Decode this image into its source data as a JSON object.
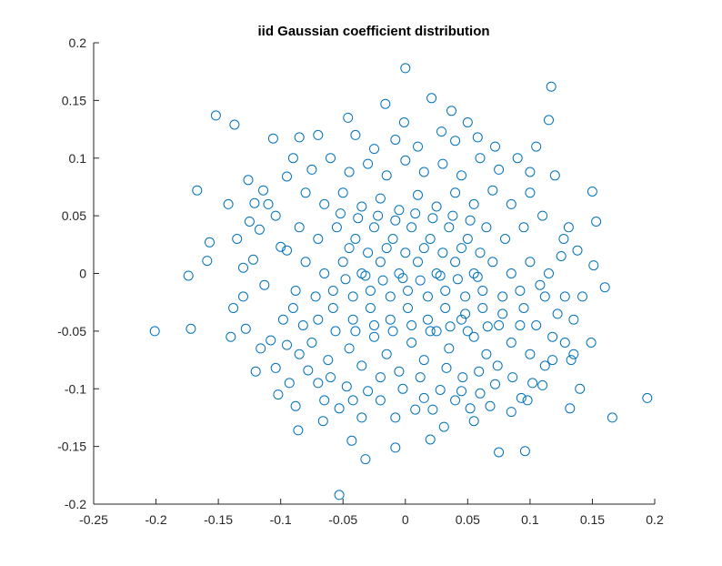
{
  "chart_data": {
    "type": "scatter",
    "title": "iid Gaussian coefficient distribution",
    "xlabel": "",
    "ylabel": "",
    "xlim": [
      -0.25,
      0.2
    ],
    "ylim": [
      -0.2,
      0.2
    ],
    "x_ticks": [
      -0.25,
      -0.2,
      -0.15,
      -0.1,
      -0.05,
      0,
      0.05,
      0.1,
      0.15,
      0.2
    ],
    "x_tick_labels": [
      "-0.25",
      "-0.2",
      "-0.15",
      "-0.1",
      "-0.05",
      "0",
      "0.05",
      "0.1",
      "0.15",
      "0.2"
    ],
    "y_ticks": [
      -0.2,
      -0.15,
      -0.1,
      -0.05,
      0,
      0.05,
      0.1,
      0.15,
      0.2
    ],
    "y_tick_labels": [
      "-0.2",
      "-0.15",
      "-0.1",
      "-0.05",
      "0",
      "0.05",
      "0.1",
      "0.15",
      "0.2"
    ],
    "grid": false,
    "box": "left-bottom",
    "marker": "circle-open",
    "marker_color": "#0072BD",
    "series": [
      {
        "points": [
          [
            0.0,
            0.178
          ],
          [
            0.117,
            0.162
          ],
          [
            -0.152,
            0.137
          ],
          [
            -0.137,
            0.129
          ],
          [
            0.021,
            0.152
          ],
          [
            -0.106,
            0.117
          ],
          [
            -0.167,
            0.072
          ],
          [
            -0.157,
            0.027
          ],
          [
            -0.174,
            -0.002
          ],
          [
            -0.201,
            -0.05
          ],
          [
            -0.172,
            -0.048
          ],
          [
            -0.159,
            0.011
          ],
          [
            0.194,
            -0.108
          ],
          [
            0.166,
            -0.125
          ],
          [
            0.15,
            0.071
          ],
          [
            0.151,
            0.007
          ],
          [
            0.16,
            -0.012
          ],
          [
            0.149,
            -0.06
          ],
          [
            0.14,
            -0.1
          ],
          [
            0.132,
            -0.117
          ],
          [
            -0.053,
            -0.192
          ],
          [
            -0.032,
            -0.161
          ],
          [
            -0.086,
            -0.136
          ],
          [
            0.075,
            -0.155
          ],
          [
            0.096,
            -0.154
          ],
          [
            -0.008,
            -0.151
          ],
          [
            0.02,
            -0.144
          ],
          [
            0.031,
            -0.133
          ],
          [
            -0.043,
            -0.145
          ],
          [
            0.131,
            0.04
          ],
          [
            0.153,
            0.045
          ],
          [
            0.127,
            0.03
          ],
          [
            0.128,
            -0.02
          ],
          [
            0.135,
            -0.04
          ],
          [
            0.133,
            -0.075
          ],
          [
            0.112,
            -0.08
          ],
          [
            0.102,
            -0.095
          ],
          [
            0.093,
            -0.108
          ],
          [
            0.115,
            0.133
          ],
          [
            0.05,
            0.131
          ],
          [
            -0.046,
            0.135
          ],
          [
            -0.001,
            0.131
          ],
          [
            -0.016,
            0.147
          ],
          [
            0.037,
            0.141
          ],
          [
            0.029,
            0.123
          ],
          [
            -0.126,
            0.081
          ],
          [
            -0.114,
            0.072
          ],
          [
            -0.121,
            0.061
          ],
          [
            -0.104,
            0.05
          ],
          [
            -0.117,
            0.038
          ],
          [
            -0.1,
            0.023
          ],
          [
            -0.122,
            0.012
          ],
          [
            -0.113,
            -0.01
          ],
          [
            -0.13,
            -0.02
          ],
          [
            -0.128,
            -0.048
          ],
          [
            -0.116,
            -0.065
          ],
          [
            -0.104,
            -0.082
          ],
          [
            -0.093,
            -0.095
          ],
          [
            -0.102,
            -0.105
          ],
          [
            -0.088,
            -0.115
          ],
          [
            -0.065,
            -0.11
          ],
          [
            -0.07,
            -0.095
          ],
          [
            -0.066,
            -0.128
          ],
          [
            -0.053,
            -0.117
          ],
          [
            -0.047,
            -0.098
          ],
          [
            -0.03,
            -0.102
          ],
          [
            -0.02,
            -0.11
          ],
          [
            -0.008,
            -0.125
          ],
          [
            0.008,
            -0.118
          ],
          [
            0.015,
            -0.108
          ],
          [
            0.028,
            -0.101
          ],
          [
            0.04,
            -0.11
          ],
          [
            0.052,
            -0.117
          ],
          [
            0.06,
            -0.104
          ],
          [
            0.072,
            -0.096
          ],
          [
            0.086,
            -0.09
          ],
          [
            0.074,
            -0.08
          ],
          [
            0.059,
            -0.085
          ],
          [
            0.046,
            -0.09
          ],
          [
            0.033,
            -0.082
          ],
          [
            -0.09,
            -0.03
          ],
          [
            -0.082,
            -0.045
          ],
          [
            -0.075,
            -0.06
          ],
          [
            -0.062,
            -0.075
          ],
          [
            -0.056,
            -0.05
          ],
          [
            -0.045,
            -0.065
          ],
          [
            -0.035,
            -0.08
          ],
          [
            -0.025,
            -0.055
          ],
          [
            -0.015,
            -0.07
          ],
          [
            -0.005,
            -0.085
          ],
          [
            0.005,
            -0.06
          ],
          [
            0.015,
            -0.075
          ],
          [
            0.025,
            -0.05
          ],
          [
            0.035,
            -0.065
          ],
          [
            0.045,
            -0.04
          ],
          [
            0.055,
            -0.055
          ],
          [
            0.065,
            -0.07
          ],
          [
            0.075,
            -0.045
          ],
          [
            0.085,
            -0.06
          ],
          [
            0.095,
            -0.03
          ],
          [
            0.105,
            -0.045
          ],
          [
            0.112,
            -0.02
          ],
          [
            0.118,
            -0.055
          ],
          [
            0.09,
            0.1
          ],
          [
            0.075,
            0.09
          ],
          [
            0.06,
            0.1
          ],
          [
            0.045,
            0.085
          ],
          [
            0.03,
            0.095
          ],
          [
            0.015,
            0.088
          ],
          [
            0.0,
            0.098
          ],
          [
            -0.015,
            0.085
          ],
          [
            -0.03,
            0.095
          ],
          [
            -0.045,
            0.088
          ],
          [
            -0.06,
            0.1
          ],
          [
            -0.075,
            0.09
          ],
          [
            -0.09,
            0.1
          ],
          [
            -0.08,
            0.07
          ],
          [
            -0.065,
            0.06
          ],
          [
            -0.05,
            0.07
          ],
          [
            -0.035,
            0.058
          ],
          [
            -0.02,
            0.065
          ],
          [
            -0.005,
            0.055
          ],
          [
            0.01,
            0.068
          ],
          [
            0.025,
            0.058
          ],
          [
            0.04,
            0.07
          ],
          [
            0.055,
            0.06
          ],
          [
            0.07,
            0.072
          ],
          [
            0.085,
            0.06
          ],
          [
            0.1,
            0.07
          ],
          [
            0.11,
            0.05
          ],
          [
            0.095,
            0.04
          ],
          [
            0.08,
            0.03
          ],
          [
            0.065,
            0.04
          ],
          [
            0.05,
            0.03
          ],
          [
            0.035,
            0.04
          ],
          [
            0.02,
            0.03
          ],
          [
            0.005,
            0.04
          ],
          [
            -0.01,
            0.03
          ],
          [
            -0.025,
            0.04
          ],
          [
            -0.04,
            0.03
          ],
          [
            -0.055,
            0.04
          ],
          [
            -0.07,
            0.03
          ],
          [
            -0.085,
            0.04
          ],
          [
            -0.095,
            0.02
          ],
          [
            -0.08,
            0.01
          ],
          [
            -0.065,
            0.0
          ],
          [
            -0.05,
            0.01
          ],
          [
            -0.035,
            0.0
          ],
          [
            -0.02,
            0.01
          ],
          [
            -0.005,
            0.0
          ],
          [
            0.01,
            0.01
          ],
          [
            0.025,
            0.0
          ],
          [
            0.04,
            0.01
          ],
          [
            0.055,
            0.0
          ],
          [
            0.07,
            0.01
          ],
          [
            0.085,
            0.0
          ],
          [
            0.1,
            0.01
          ],
          [
            0.115,
            0.0
          ],
          [
            0.125,
            0.015
          ],
          [
            0.108,
            -0.01
          ],
          [
            0.092,
            -0.015
          ],
          [
            0.078,
            -0.02
          ],
          [
            0.062,
            -0.015
          ],
          [
            0.048,
            -0.02
          ],
          [
            0.032,
            -0.015
          ],
          [
            0.018,
            -0.02
          ],
          [
            0.002,
            -0.015
          ],
          [
            -0.012,
            -0.02
          ],
          [
            -0.028,
            -0.015
          ],
          [
            -0.042,
            -0.02
          ],
          [
            -0.058,
            -0.015
          ],
          [
            -0.072,
            -0.02
          ],
          [
            -0.088,
            -0.015
          ],
          [
            -0.098,
            -0.04
          ],
          [
            -0.085,
            -0.07
          ],
          [
            -0.07,
            -0.04
          ],
          [
            -0.058,
            -0.03
          ],
          [
            -0.042,
            -0.04
          ],
          [
            -0.028,
            -0.03
          ],
          [
            -0.012,
            -0.04
          ],
          [
            0.002,
            -0.03
          ],
          [
            0.018,
            -0.04
          ],
          [
            0.032,
            -0.03
          ],
          [
            0.048,
            -0.035
          ],
          [
            0.062,
            -0.03
          ],
          [
            0.078,
            -0.035
          ],
          [
            0.092,
            -0.045
          ],
          [
            0.1,
            -0.07
          ],
          [
            0.122,
            -0.035
          ],
          [
            0.138,
            0.02
          ],
          [
            0.142,
            -0.02
          ],
          [
            0.12,
            0.085
          ],
          [
            0.105,
            0.11
          ],
          [
            0.1,
            0.088
          ],
          [
            0.072,
            0.11
          ],
          [
            -0.008,
            0.116
          ],
          [
            -0.04,
            0.12
          ],
          [
            -0.025,
            0.108
          ],
          [
            0.01,
            0.11
          ],
          [
            0.04,
            0.115
          ],
          [
            0.058,
            0.118
          ],
          [
            -0.07,
            0.12
          ],
          [
            -0.085,
            0.118
          ],
          [
            -0.095,
            0.084
          ],
          [
            -0.11,
            0.06
          ],
          [
            -0.125,
            0.045
          ],
          [
            -0.135,
            0.03
          ],
          [
            -0.142,
            0.06
          ],
          [
            -0.13,
            0.005
          ],
          [
            -0.138,
            -0.03
          ],
          [
            -0.14,
            -0.055
          ],
          [
            -0.12,
            -0.085
          ],
          [
            -0.108,
            -0.058
          ],
          [
            -0.095,
            -0.062
          ],
          [
            -0.078,
            -0.084
          ],
          [
            -0.06,
            -0.09
          ],
          [
            -0.042,
            -0.11
          ],
          [
            -0.035,
            -0.125
          ],
          [
            -0.02,
            -0.09
          ],
          [
            -0.002,
            -0.1
          ],
          [
            0.012,
            -0.09
          ],
          [
            0.022,
            -0.118
          ],
          [
            0.045,
            -0.102
          ],
          [
            0.055,
            -0.128
          ],
          [
            0.068,
            -0.115
          ],
          [
            0.085,
            -0.12
          ],
          [
            0.098,
            -0.11
          ],
          [
            0.11,
            -0.097
          ],
          [
            0.118,
            -0.075
          ],
          [
            0.128,
            -0.06
          ],
          [
            0.135,
            -0.07
          ],
          [
            -0.052,
            0.052
          ],
          [
            -0.038,
            0.048
          ],
          [
            -0.022,
            0.05
          ],
          [
            -0.008,
            0.046
          ],
          [
            0.008,
            0.052
          ],
          [
            0.022,
            0.048
          ],
          [
            0.038,
            0.05
          ],
          [
            0.052,
            0.046
          ],
          [
            -0.045,
            0.022
          ],
          [
            -0.03,
            0.018
          ],
          [
            -0.015,
            0.022
          ],
          [
            0.0,
            0.018
          ],
          [
            0.015,
            0.022
          ],
          [
            0.03,
            0.018
          ],
          [
            0.045,
            0.022
          ],
          [
            0.06,
            0.018
          ],
          [
            -0.048,
            -0.005
          ],
          [
            -0.032,
            -0.002
          ],
          [
            -0.018,
            -0.006
          ],
          [
            -0.002,
            -0.004
          ],
          [
            0.012,
            -0.006
          ],
          [
            0.028,
            -0.002
          ],
          [
            0.042,
            -0.005
          ],
          [
            0.058,
            -0.003
          ],
          [
            -0.04,
            -0.05
          ],
          [
            -0.025,
            -0.045
          ],
          [
            -0.01,
            -0.05
          ],
          [
            0.005,
            -0.045
          ],
          [
            0.02,
            -0.05
          ],
          [
            0.036,
            -0.046
          ],
          [
            0.05,
            -0.05
          ],
          [
            0.066,
            -0.046
          ]
        ]
      }
    ]
  }
}
